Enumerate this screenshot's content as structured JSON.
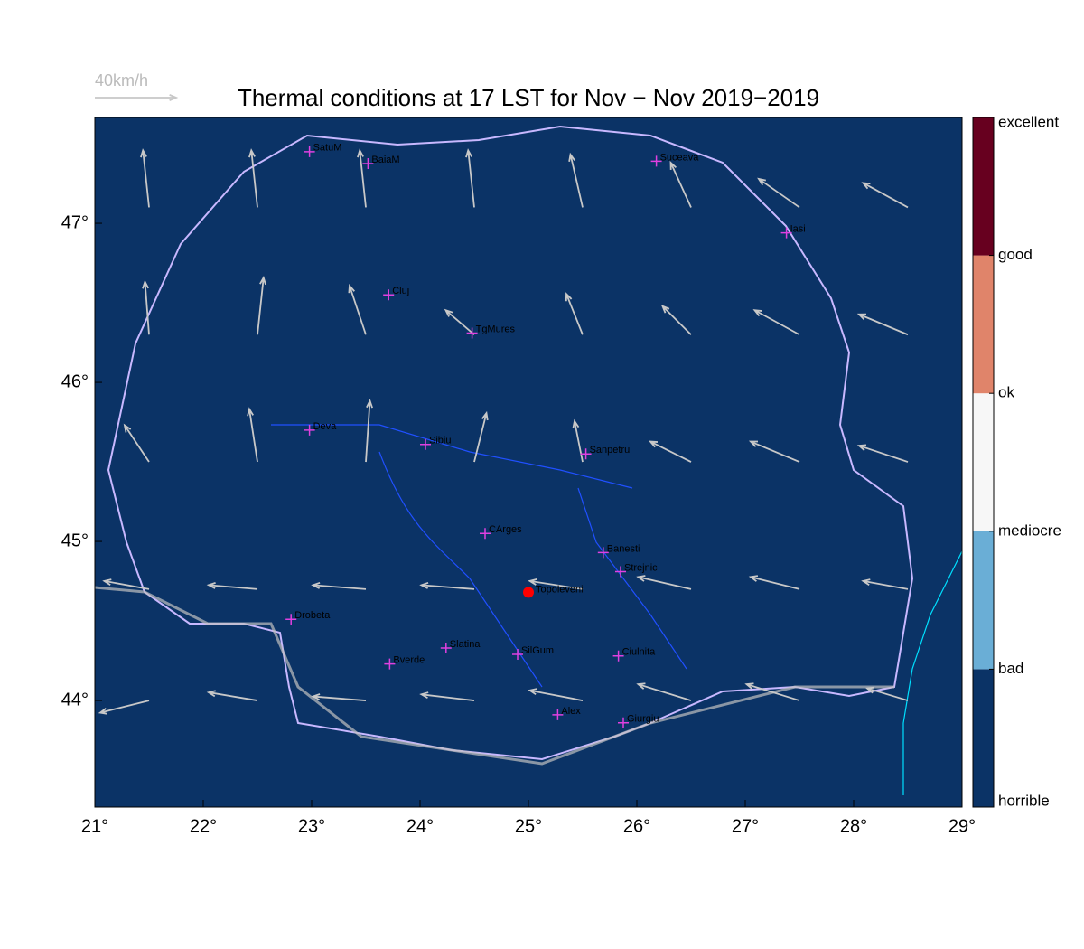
{
  "title": "Thermal conditions at 17 LST for Nov − Nov  2019−2019",
  "map": {
    "xlim": [
      21,
      29
    ],
    "ylim": [
      43.33,
      47.665
    ],
    "background": "#0b3366",
    "xticks": [
      {
        "value": 21,
        "label": "21°"
      },
      {
        "value": 22,
        "label": "22°"
      },
      {
        "value": 23,
        "label": "23°"
      },
      {
        "value": 24,
        "label": "24°"
      },
      {
        "value": 25,
        "label": "25°"
      },
      {
        "value": 26,
        "label": "26°"
      },
      {
        "value": 27,
        "label": "27°"
      },
      {
        "value": 28,
        "label": "28°"
      },
      {
        "value": 29,
        "label": "29°"
      }
    ],
    "yticks": [
      {
        "value": 44,
        "label": "44°"
      },
      {
        "value": 45,
        "label": "45°"
      },
      {
        "value": 46,
        "label": "46°"
      },
      {
        "value": 47,
        "label": "47°"
      }
    ]
  },
  "wind": {
    "scale": {
      "value": 40,
      "label": "40km/h"
    },
    "color": "#c8c8c8",
    "arrows": [
      {
        "lon": 21.5,
        "lat": 47.1,
        "u": -3,
        "v": 28
      },
      {
        "lon": 22.5,
        "lat": 47.1,
        "u": -3,
        "v": 28
      },
      {
        "lon": 23.5,
        "lat": 47.1,
        "u": -3,
        "v": 28
      },
      {
        "lon": 24.5,
        "lat": 47.1,
        "u": -3,
        "v": 28
      },
      {
        "lon": 25.5,
        "lat": 47.1,
        "u": -6,
        "v": 26
      },
      {
        "lon": 26.5,
        "lat": 47.1,
        "u": -10,
        "v": 22
      },
      {
        "lon": 27.5,
        "lat": 47.1,
        "u": -20,
        "v": 14
      },
      {
        "lon": 28.5,
        "lat": 47.1,
        "u": -22,
        "v": 12
      },
      {
        "lon": 21.5,
        "lat": 46.3,
        "u": -2,
        "v": 26
      },
      {
        "lon": 22.5,
        "lat": 46.3,
        "u": 3,
        "v": 28
      },
      {
        "lon": 23.5,
        "lat": 46.3,
        "u": -8,
        "v": 24
      },
      {
        "lon": 24.5,
        "lat": 46.3,
        "u": -14,
        "v": 12
      },
      {
        "lon": 25.5,
        "lat": 46.3,
        "u": -8,
        "v": 20
      },
      {
        "lon": 26.5,
        "lat": 46.3,
        "u": -14,
        "v": 14
      },
      {
        "lon": 27.5,
        "lat": 46.3,
        "u": -22,
        "v": 12
      },
      {
        "lon": 28.5,
        "lat": 46.3,
        "u": -24,
        "v": 10
      },
      {
        "lon": 21.5,
        "lat": 45.5,
        "u": -12,
        "v": 18
      },
      {
        "lon": 22.5,
        "lat": 45.5,
        "u": -4,
        "v": 26
      },
      {
        "lon": 23.5,
        "lat": 45.5,
        "u": 2,
        "v": 30
      },
      {
        "lon": 24.5,
        "lat": 45.5,
        "u": 6,
        "v": 24
      },
      {
        "lon": 25.5,
        "lat": 45.5,
        "u": -4,
        "v": 20
      },
      {
        "lon": 26.5,
        "lat": 45.5,
        "u": -20,
        "v": 10
      },
      {
        "lon": 27.5,
        "lat": 45.5,
        "u": -24,
        "v": 10
      },
      {
        "lon": 28.5,
        "lat": 45.5,
        "u": -24,
        "v": 8
      },
      {
        "lon": 21.5,
        "lat": 44.7,
        "u": -22,
        "v": 4
      },
      {
        "lon": 22.5,
        "lat": 44.7,
        "u": -24,
        "v": 2
      },
      {
        "lon": 23.5,
        "lat": 44.7,
        "u": -26,
        "v": 2
      },
      {
        "lon": 24.5,
        "lat": 44.7,
        "u": -26,
        "v": 2
      },
      {
        "lon": 25.5,
        "lat": 44.7,
        "u": -26,
        "v": 4
      },
      {
        "lon": 26.5,
        "lat": 44.7,
        "u": -26,
        "v": 6
      },
      {
        "lon": 27.5,
        "lat": 44.7,
        "u": -24,
        "v": 6
      },
      {
        "lon": 28.5,
        "lat": 44.7,
        "u": -22,
        "v": 4
      },
      {
        "lon": 21.5,
        "lat": 44.0,
        "u": -24,
        "v": -6
      },
      {
        "lon": 22.5,
        "lat": 44.0,
        "u": -24,
        "v": 4
      },
      {
        "lon": 23.5,
        "lat": 44.0,
        "u": -26,
        "v": 2
      },
      {
        "lon": 24.5,
        "lat": 44.0,
        "u": -26,
        "v": 3
      },
      {
        "lon": 25.5,
        "lat": 44.0,
        "u": -26,
        "v": 5
      },
      {
        "lon": 26.5,
        "lat": 44.0,
        "u": -26,
        "v": 8
      },
      {
        "lon": 27.5,
        "lat": 44.0,
        "u": -26,
        "v": 8
      },
      {
        "lon": 28.5,
        "lat": 44.0,
        "u": -20,
        "v": 6
      }
    ]
  },
  "stations": [
    {
      "name": "SatuM",
      "lon": 22.98,
      "lat": 47.45
    },
    {
      "name": "BaiaM",
      "lon": 23.52,
      "lat": 47.375
    },
    {
      "name": "Suceava",
      "lon": 26.18,
      "lat": 47.39
    },
    {
      "name": "Iasi",
      "lon": 27.38,
      "lat": 46.94
    },
    {
      "name": "Cluj",
      "lon": 23.71,
      "lat": 46.55
    },
    {
      "name": "TgMures",
      "lon": 24.48,
      "lat": 46.31
    },
    {
      "name": "Deva",
      "lon": 22.98,
      "lat": 45.7
    },
    {
      "name": "Sibiu",
      "lon": 24.05,
      "lat": 45.61
    },
    {
      "name": "Sanpetru",
      "lon": 25.53,
      "lat": 45.55
    },
    {
      "name": "CArges",
      "lon": 24.6,
      "lat": 45.05
    },
    {
      "name": "Banesti",
      "lon": 25.69,
      "lat": 44.93
    },
    {
      "name": "Strejnic",
      "lon": 25.85,
      "lat": 44.81
    },
    {
      "name": "Drobeta",
      "lon": 22.81,
      "lat": 44.51
    },
    {
      "name": "Slatina",
      "lon": 24.24,
      "lat": 44.33
    },
    {
      "name": "SilGum",
      "lon": 24.9,
      "lat": 44.29
    },
    {
      "name": "Ciulnita",
      "lon": 25.83,
      "lat": 44.28
    },
    {
      "name": "Bverde",
      "lon": 23.72,
      "lat": 44.23
    },
    {
      "name": "Alex",
      "lon": 25.27,
      "lat": 43.91
    },
    {
      "name": "Giurgiu",
      "lon": 25.875,
      "lat": 43.86
    }
  ],
  "site": {
    "name": "Topoleveni",
    "lon": 25.0,
    "lat": 44.68,
    "color": "#ff0000"
  },
  "colorbar": {
    "labels": [
      "horrible",
      "bad",
      "mediocre",
      "ok",
      "good",
      "excellent"
    ],
    "colors": [
      "#0b3366",
      "#6aaed6",
      "#f7f7f7",
      "#e0846a",
      "#67001f"
    ]
  }
}
